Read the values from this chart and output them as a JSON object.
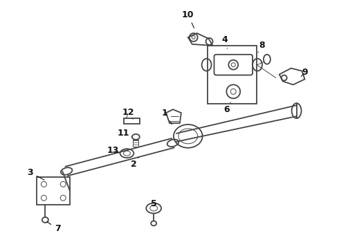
{
  "bg_color": "#ffffff",
  "line_color": "#444444",
  "label_color": "#111111",
  "label_fontsize": 9,
  "lw_main": 1.3,
  "lw_thin": 0.7
}
